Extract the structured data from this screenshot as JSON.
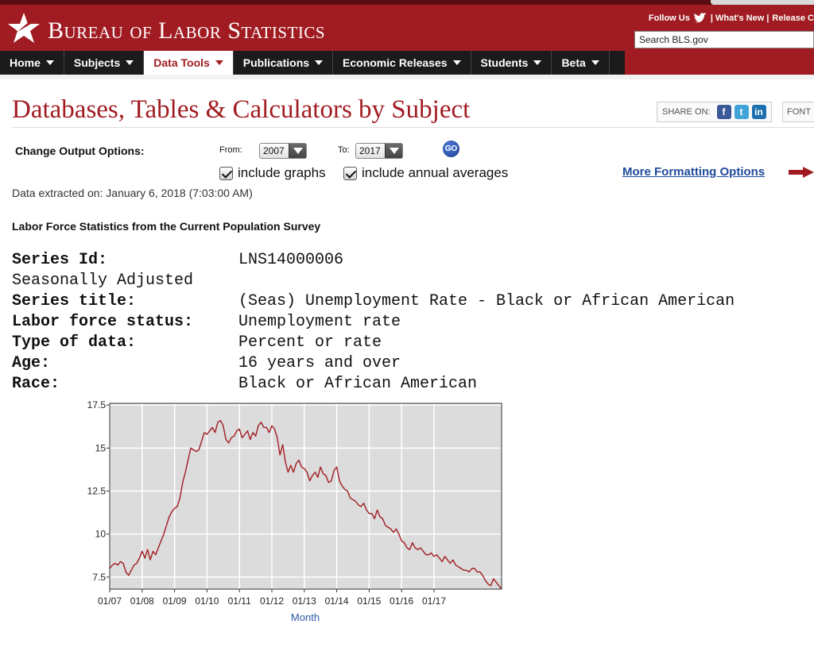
{
  "header": {
    "logo_text": "Bureau of Labor Statistics",
    "follow_label": "Follow Us",
    "whats_new_label": "| What's New |",
    "release_label": "Release C",
    "search_placeholder": "Search BLS.gov",
    "brand_color": "#a11c22"
  },
  "nav": {
    "items": [
      {
        "label": "Home"
      },
      {
        "label": "Subjects"
      },
      {
        "label": "Data Tools"
      },
      {
        "label": "Publications"
      },
      {
        "label": "Economic Releases"
      },
      {
        "label": "Students"
      },
      {
        "label": "Beta"
      }
    ],
    "active_index": 2
  },
  "page": {
    "title": "Databases, Tables & Calculators by Subject",
    "share_label": "SHARE ON:",
    "font_label": "FONT"
  },
  "options": {
    "label": "Change Output Options:",
    "from_label": "From:",
    "from_value": "2007",
    "to_label": "To:",
    "to_value": "2017",
    "go_label": "GO",
    "include_graphs": "include graphs",
    "include_annual": "include annual averages",
    "more_formatting": "More Formatting Options"
  },
  "extracted": "Data extracted on: January 6, 2018 (7:03:00 AM)",
  "section_title": "Labor Force Statistics from the Current Population Survey",
  "series": {
    "id_key": "Series Id:",
    "id_value": "LNS14000006",
    "adjustment": "Seasonally Adjusted",
    "title_key": "Series title:",
    "title_value": "(Seas) Unemployment Rate - Black or African American",
    "status_key": "Labor force status:",
    "status_value": "Unemployment rate",
    "type_key": "Type of data:",
    "type_value": "Percent or rate",
    "age_key": "Age:",
    "age_value": "16 years and over",
    "race_key": "Race:",
    "race_value": "Black or African American"
  },
  "chart_data": {
    "type": "line",
    "xlabel": "Month",
    "ylabel": "",
    "x_ticks": [
      "01/07",
      "01/08",
      "01/09",
      "01/10",
      "01/11",
      "01/12",
      "01/13",
      "01/14",
      "01/15",
      "01/16",
      "01/17"
    ],
    "y_ticks": [
      "7.5",
      "10",
      "12.5",
      "15",
      "17.5"
    ],
    "ylim": [
      6.8,
      17.6
    ],
    "grid": true,
    "line_color": "#a11c22",
    "plot_background": "#dcdcdc",
    "series": [
      {
        "values": [
          8.0,
          8.2,
          8.3,
          8.2,
          8.4,
          8.3,
          7.8,
          7.6,
          7.9,
          8.2,
          8.3,
          8.6,
          9.0,
          8.6,
          9.1,
          8.5,
          9.0,
          8.8,
          9.2,
          9.6,
          10.0,
          10.5,
          11.0,
          11.3,
          11.5,
          11.6,
          12.1,
          13.0,
          13.6,
          14.3,
          15.0,
          14.9,
          14.8,
          14.9,
          15.4,
          15.9,
          15.8,
          16.0,
          16.2,
          15.9,
          16.5,
          16.6,
          16.3,
          15.5,
          15.3,
          15.6,
          15.7,
          16.0,
          16.1,
          15.6,
          15.8,
          16.0,
          15.5,
          15.9,
          15.7,
          16.3,
          16.5,
          16.2,
          16.2,
          15.9,
          16.3,
          16.1,
          15.6,
          14.6,
          15.2,
          14.2,
          13.6,
          14.0,
          13.6,
          14.1,
          14.3,
          13.9,
          13.8,
          13.6,
          13.1,
          13.4,
          13.6,
          13.3,
          13.9,
          13.5,
          13.4,
          13.0,
          13.1,
          13.7,
          13.9,
          13.1,
          12.8,
          12.6,
          12.5,
          12.1,
          12.0,
          11.9,
          11.7,
          11.6,
          11.8,
          11.4,
          11.2,
          11.2,
          10.9,
          11.4,
          11.0,
          10.9,
          10.5,
          10.4,
          10.3,
          10.1,
          10.3,
          10.0,
          9.6,
          9.5,
          9.2,
          9.1,
          9.5,
          9.2,
          9.1,
          9.2,
          9.0,
          8.8,
          8.8,
          8.9,
          8.7,
          8.8,
          8.6,
          8.4,
          8.7,
          8.5,
          8.3,
          8.5,
          8.2,
          8.1,
          8.0,
          7.9,
          7.9,
          7.8,
          8.0,
          8.0,
          7.8,
          7.8,
          7.6,
          7.3,
          7.1,
          7.0,
          7.4,
          7.2,
          7.0,
          6.8
        ]
      }
    ]
  }
}
